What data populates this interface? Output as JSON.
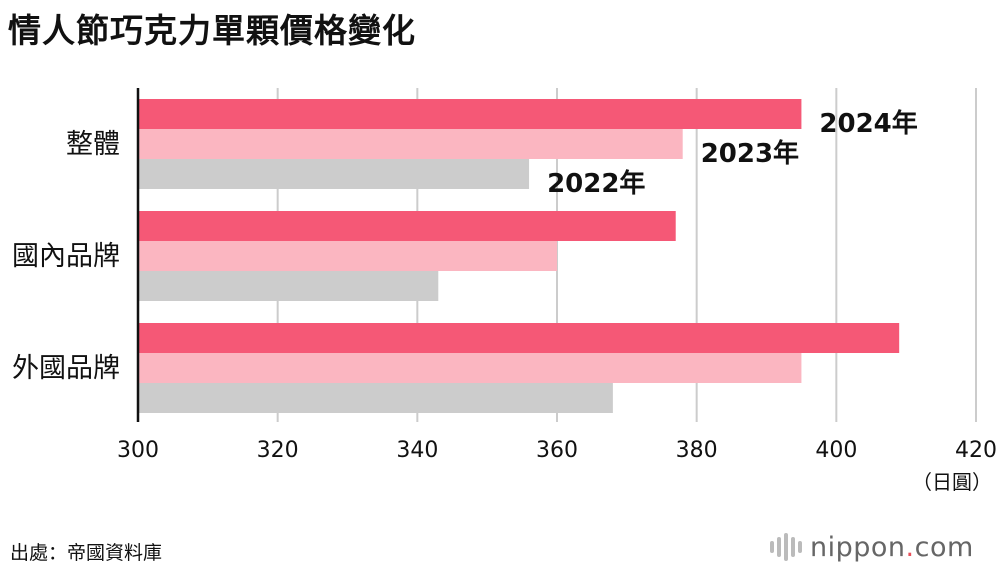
{
  "title": "情人節巧克力單顆價格變化",
  "source": "出處：帝國資料庫",
  "brand": {
    "name": "nippon",
    "dot": ".",
    "suffix": "com"
  },
  "colors": {
    "2024": "#f55876",
    "2023": "#fbb6c1",
    "2022": "#cccccc",
    "grid": "#cccccc",
    "axis": "#111111"
  },
  "chart_data": {
    "type": "bar",
    "orientation": "horizontal",
    "title": "情人節巧克力單顆價格變化",
    "categories": [
      "整體",
      "國內品牌",
      "外國品牌"
    ],
    "series": [
      {
        "name": "2024年",
        "values": [
          395,
          377,
          409
        ]
      },
      {
        "name": "2023年",
        "values": [
          378,
          360,
          395
        ]
      },
      {
        "name": "2022年",
        "values": [
          356,
          343,
          368
        ]
      }
    ],
    "xlim": [
      300,
      420
    ],
    "xticks": [
      300,
      320,
      340,
      360,
      380,
      400,
      420
    ],
    "xunit": "（日圓）",
    "grid": true,
    "legend": "inline labels beside first category bars"
  }
}
